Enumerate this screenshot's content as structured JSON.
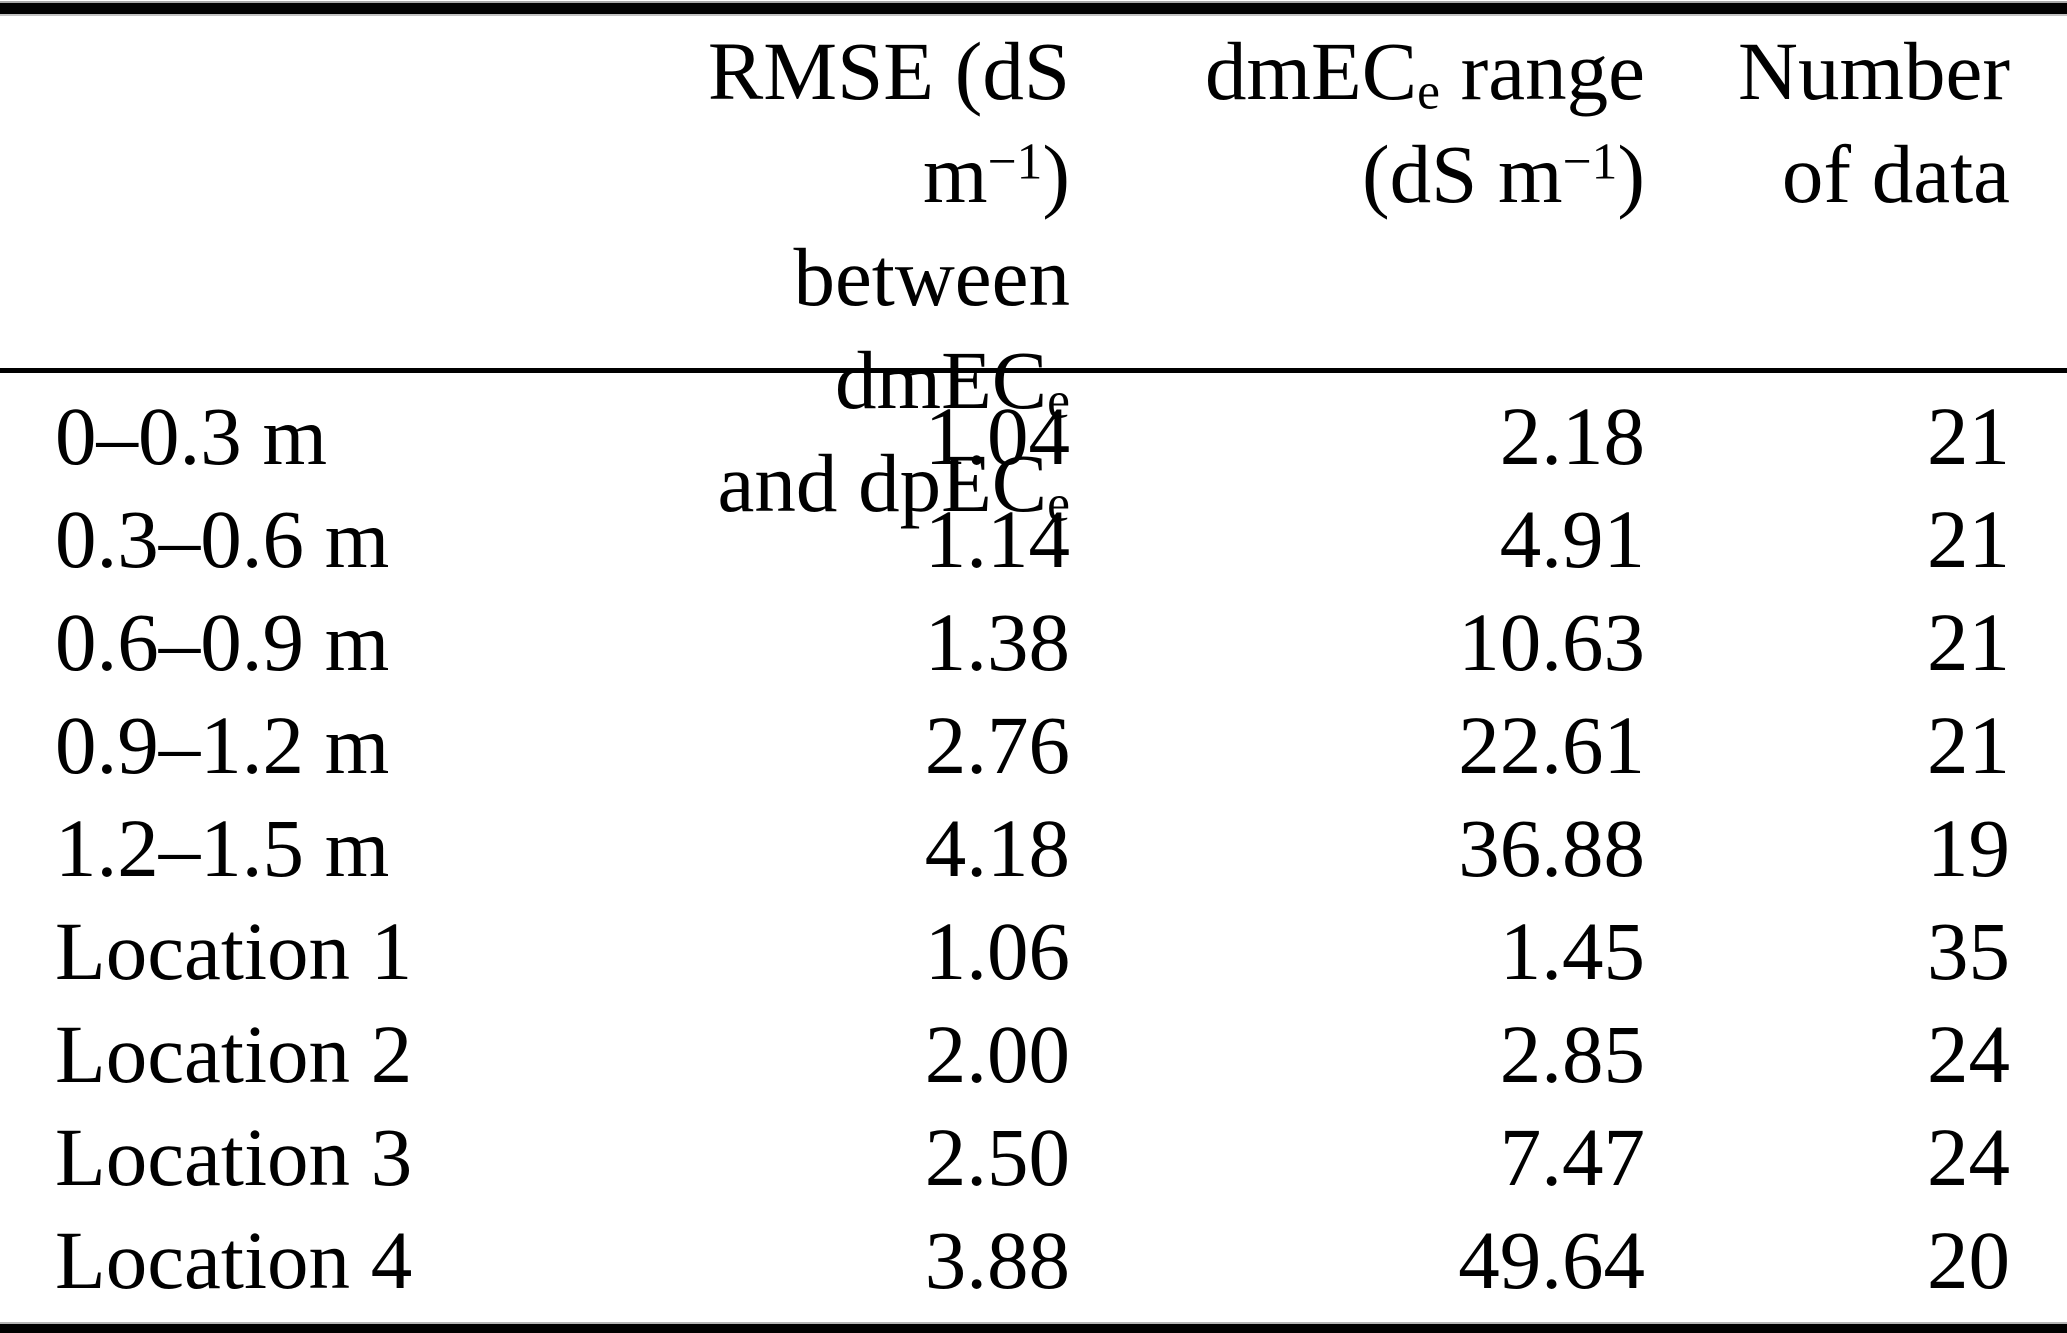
{
  "table": {
    "colors": {
      "text": "#000000",
      "background": "#ffffff",
      "rule": "#000000"
    },
    "header": {
      "label_col": "",
      "rmse_col": {
        "line1_pre": "RMSE (dS m",
        "line1_sup": "−1",
        "line1_post": ")",
        "line2_pre": "between dmEC",
        "line2_sub": "e",
        "line3_pre": "and dpEC",
        "line3_sub": "e"
      },
      "range_col": {
        "line1_pre": "dmEC",
        "line1_sub": "e",
        "line1_post": " range",
        "line2_pre": "(dS m",
        "line2_sup": "−1",
        "line2_post": ")"
      },
      "count_col": {
        "line1": "Number",
        "line2": "of data"
      }
    },
    "rows": [
      {
        "label": "0–0.3 m",
        "rmse": "1.04",
        "range": "2.18",
        "n": "21"
      },
      {
        "label": "0.3–0.6 m",
        "rmse": "1.14",
        "range": "4.91",
        "n": "21"
      },
      {
        "label": "0.6–0.9 m",
        "rmse": "1.38",
        "range": "10.63",
        "n": "21"
      },
      {
        "label": "0.9–1.2 m",
        "rmse": "2.76",
        "range": "22.61",
        "n": "21"
      },
      {
        "label": "1.2–1.5 m",
        "rmse": "4.18",
        "range": "36.88",
        "n": "19"
      },
      {
        "label": "Location 1",
        "rmse": "1.06",
        "range": "1.45",
        "n": "35"
      },
      {
        "label": "Location 2",
        "rmse": "2.00",
        "range": "2.85",
        "n": "24"
      },
      {
        "label": "Location 3",
        "rmse": "2.50",
        "range": "7.47",
        "n": "24"
      },
      {
        "label": "Location 4",
        "rmse": "3.88",
        "range": "49.64",
        "n": "20"
      }
    ]
  }
}
